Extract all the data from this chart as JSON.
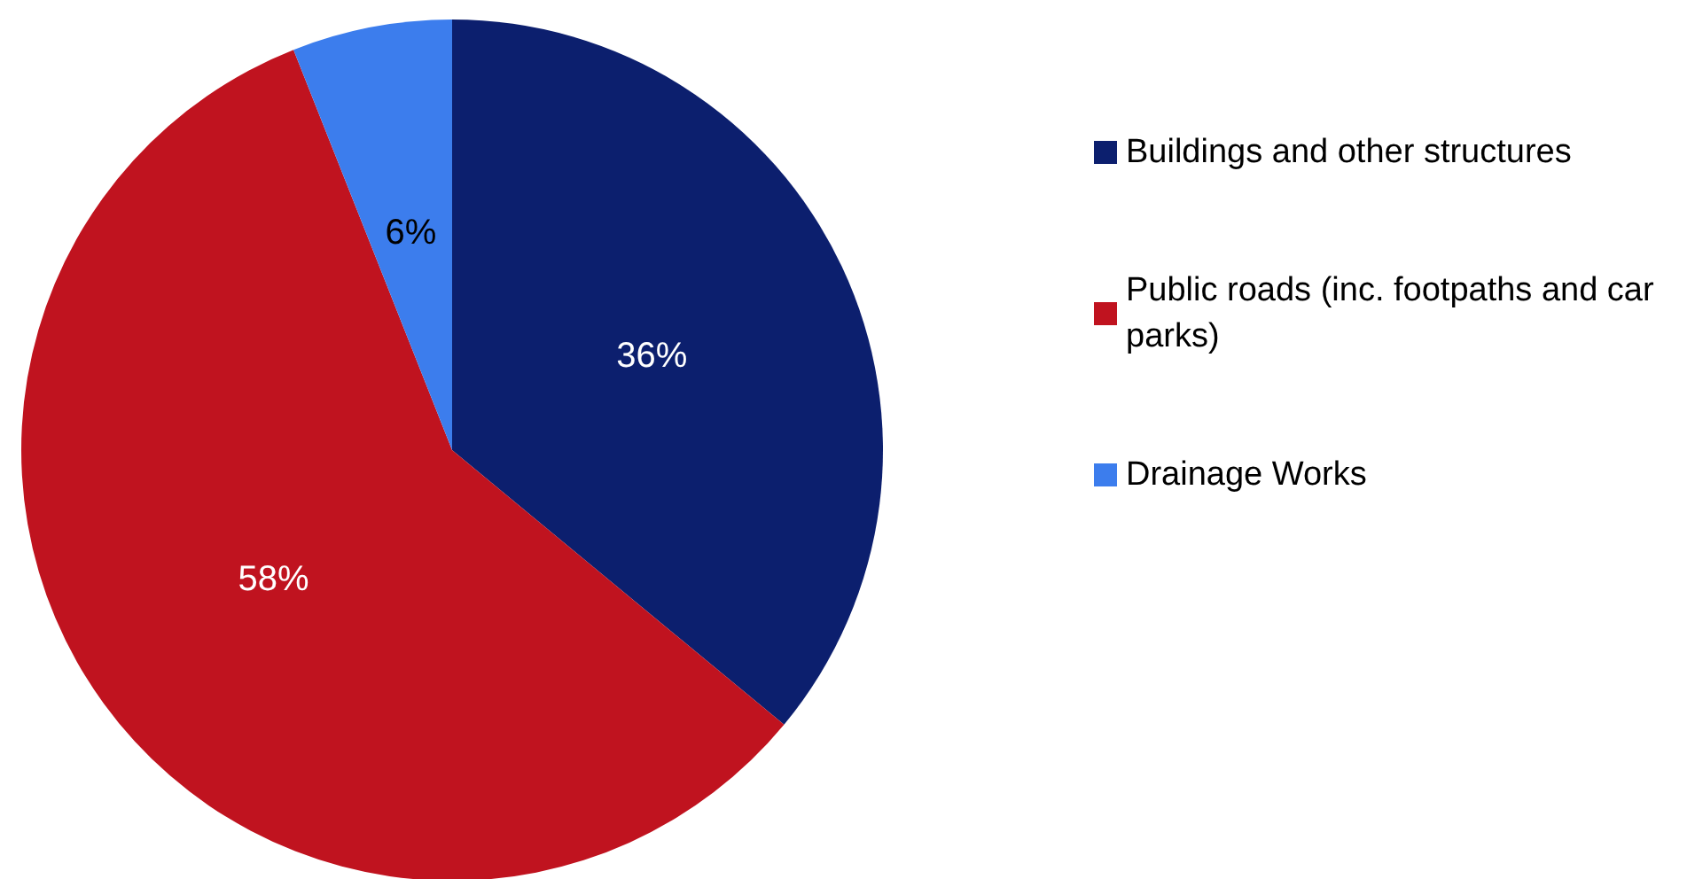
{
  "chart_data": {
    "type": "pie",
    "categories": [
      "Buildings and other structures",
      "Public roads (inc. footpaths and car parks)",
      "Drainage Works"
    ],
    "values": [
      36,
      58,
      6
    ],
    "colors": [
      "#0c1f6e",
      "#c0131f",
      "#3c7ded"
    ],
    "value_labels": [
      "36%",
      "58%",
      "6%"
    ],
    "legend": "right"
  }
}
